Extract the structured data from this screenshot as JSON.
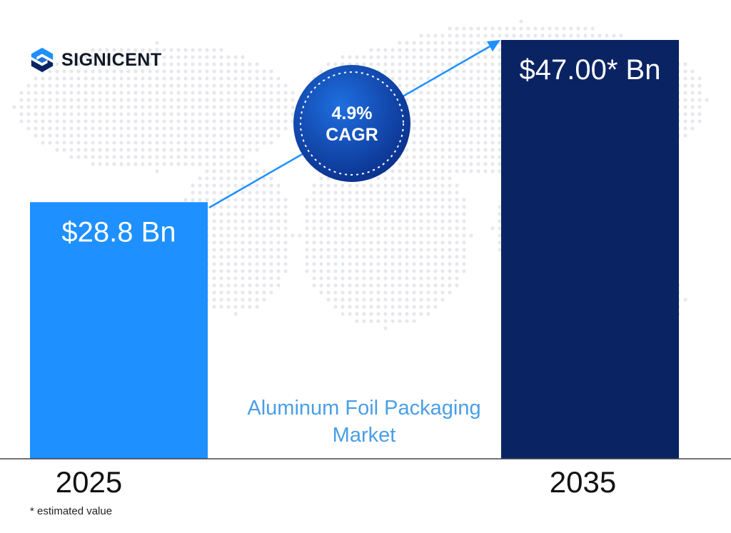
{
  "brand": {
    "name": "SIGNICENT"
  },
  "colors": {
    "bar_2025": "#1e90ff",
    "bar_2035": "#0a2463",
    "arrow": "#1e90ff",
    "cagr_circle": "#0a3d9c",
    "title_text": "#4a9ee6"
  },
  "market_title": "Aluminum Foil Packaging Market",
  "footnote": "* estimated value",
  "chart_data": {
    "type": "bar",
    "categories": [
      "2025",
      "2035"
    ],
    "values": [
      28.8,
      47.0
    ],
    "value_labels": [
      "$28.8 Bn",
      "$47.00* Bn"
    ],
    "cagr": {
      "value": "4.9%",
      "label": "CAGR"
    },
    "ylim": [
      0,
      47.0
    ],
    "grid": false
  }
}
